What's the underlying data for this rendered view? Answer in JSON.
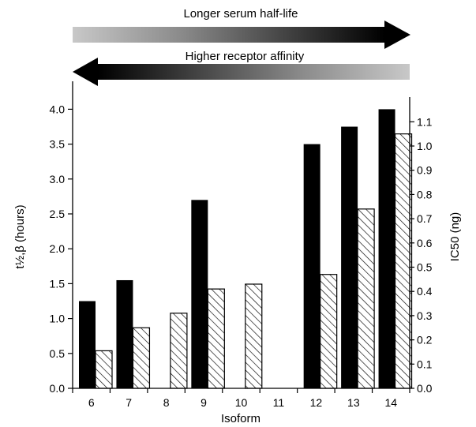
{
  "header": {
    "top_arrow_label": "Longer serum half-life",
    "bottom_arrow_label": "Higher receptor affinity"
  },
  "colors": {
    "bar_fill": "#000000",
    "hatch_stroke": "#000000",
    "background": "#ffffff",
    "gradient_light": "#c8c8c8",
    "gradient_dark": "#000000"
  },
  "chart_data": {
    "type": "bar",
    "xlabel": "Isoform",
    "ylabel_left": "t½,β (hours)",
    "ylabel_right": "IC50 (ng)",
    "categories": [
      "6",
      "7",
      "8",
      "9",
      "10",
      "11",
      "12",
      "13",
      "14"
    ],
    "left_axis": {
      "range": [
        0,
        4.4
      ],
      "ticks": [
        "0.0",
        "0.5",
        "1.0",
        "1.5",
        "2.0",
        "2.5",
        "3.0",
        "3.5",
        "4.0"
      ]
    },
    "right_axis": {
      "range": [
        0,
        1.2
      ],
      "ticks": [
        "0.0",
        "0.1",
        "0.2",
        "0.3",
        "0.4",
        "0.5",
        "0.6",
        "0.7",
        "0.8",
        "0.9",
        "1.0",
        "1.1"
      ]
    },
    "series": [
      {
        "axis": "left",
        "style": "solid",
        "values": [
          1.25,
          1.55,
          null,
          2.7,
          null,
          null,
          3.5,
          3.75,
          4.0
        ]
      },
      {
        "axis": "right",
        "style": "hatched",
        "values": [
          0.155,
          0.25,
          0.31,
          0.41,
          0.43,
          null,
          0.47,
          0.74,
          1.05
        ]
      }
    ],
    "grid": false
  }
}
